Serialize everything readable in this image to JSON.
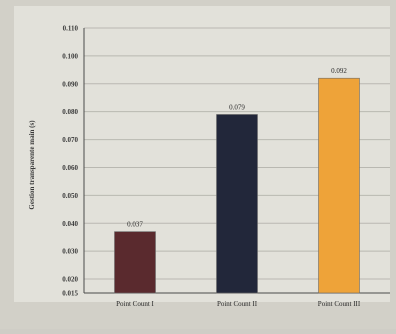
{
  "chart_data": {
    "type": "bar",
    "ylabel": "Gestion transparente main (s)",
    "categories": [
      "Point Count I",
      "Point Count II",
      "Point Count III"
    ],
    "values": [
      0.037,
      0.079,
      0.092
    ],
    "value_labels": [
      "0.037",
      "0.079",
      "0.092"
    ],
    "bar_colors": [
      "#5a2a2e",
      "#22273a",
      "#eea339"
    ],
    "ylim": [
      0.015,
      0.11
    ],
    "yticks": [
      0.015,
      0.02,
      0.03,
      0.04,
      0.05,
      0.06,
      0.07,
      0.08,
      0.09,
      0.1,
      0.11
    ],
    "ytick_labels": [
      "0.015",
      "0.020",
      "0.030",
      "0.040",
      "0.050",
      "0.060",
      "0.070",
      "0.080",
      "0.090",
      "0.100",
      "0.110"
    ],
    "grid": true,
    "legend": "none"
  }
}
